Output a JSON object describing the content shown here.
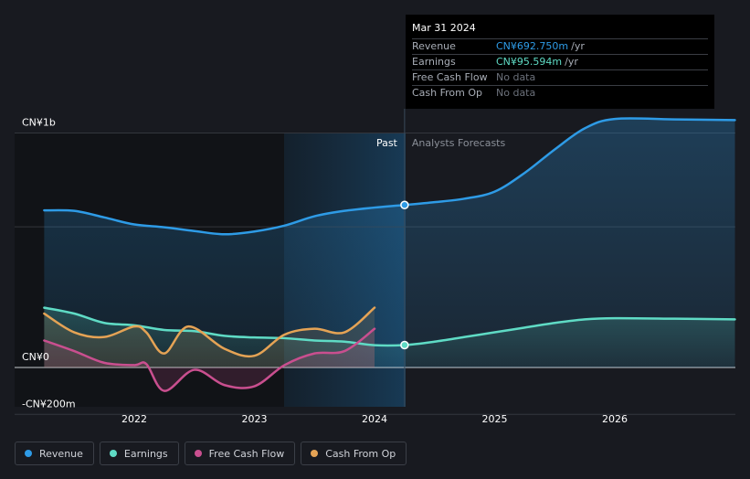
{
  "chart_data": {
    "type": "line",
    "y_unit": "CN¥m",
    "ylim": [
      -200,
      1000
    ],
    "y_axis_labels": [
      {
        "value": 1000,
        "label": "CN¥1b"
      },
      {
        "value": 0,
        "label": "CN¥0"
      },
      {
        "value": -200,
        "label": "-CN¥200m"
      }
    ],
    "x_ticks": [
      {
        "year": 2022,
        "label": "2022"
      },
      {
        "year": 2023,
        "label": "2023"
      },
      {
        "year": 2024,
        "label": "2024"
      },
      {
        "year": 2025,
        "label": "2025"
      },
      {
        "year": 2026,
        "label": "2026"
      }
    ],
    "past_label": "Past",
    "forecast_label": "Analysts Forecasts",
    "divider_date": 2024.25,
    "series": [
      {
        "name": "Revenue",
        "color": "#2e9be6",
        "x": [
          2021.25,
          2021.5,
          2021.75,
          2022.0,
          2022.25,
          2022.5,
          2022.75,
          2023.0,
          2023.25,
          2023.5,
          2023.75,
          2024.0,
          2024.25,
          2024.5,
          2024.75,
          2025.0,
          2025.25,
          2025.5,
          2025.75,
          2026.0,
          2026.5,
          2027.0
        ],
        "values": [
          670,
          668,
          640,
          610,
          598,
          582,
          568,
          580,
          605,
          645,
          668,
          682,
          693,
          705,
          720,
          750,
          830,
          930,
          1020,
          1060,
          1058,
          1055
        ]
      },
      {
        "name": "Earnings",
        "color": "#5fdbc5",
        "x": [
          2021.25,
          2021.5,
          2021.75,
          2022.0,
          2022.25,
          2022.5,
          2022.75,
          2023.0,
          2023.25,
          2023.5,
          2023.75,
          2024.0,
          2024.25,
          2024.5,
          2024.75,
          2025.0,
          2025.25,
          2025.5,
          2025.75,
          2026.0,
          2026.5,
          2027.0
        ],
        "values": [
          255,
          230,
          190,
          180,
          160,
          155,
          135,
          128,
          125,
          115,
          110,
          95,
          95.6,
          110,
          130,
          150,
          170,
          190,
          205,
          210,
          208,
          205
        ]
      },
      {
        "name": "Free Cash Flow",
        "color": "#c94f8f",
        "x": [
          2021.25,
          2021.5,
          2021.75,
          2022.0,
          2022.1,
          2022.25,
          2022.5,
          2022.75,
          2023.0,
          2023.25,
          2023.5,
          2023.75,
          2024.0
        ],
        "values": [
          115,
          70,
          20,
          10,
          15,
          -100,
          -10,
          -75,
          -80,
          10,
          60,
          70,
          165
        ]
      },
      {
        "name": "Cash From Op",
        "color": "#e5a355",
        "x": [
          2021.25,
          2021.5,
          2021.75,
          2022.0,
          2022.1,
          2022.25,
          2022.45,
          2022.75,
          2023.0,
          2023.25,
          2023.5,
          2023.75,
          2024.0
        ],
        "values": [
          230,
          150,
          130,
          175,
          150,
          60,
          175,
          80,
          50,
          140,
          165,
          150,
          255
        ]
      }
    ]
  },
  "tooltip": {
    "date": "Mar 31 2024",
    "rows": [
      {
        "label": "Revenue",
        "value": "CN¥692.750m",
        "unit": "/yr",
        "color": "#2e9be6"
      },
      {
        "label": "Earnings",
        "value": "CN¥95.594m",
        "unit": "/yr",
        "color": "#5fdbc5"
      },
      {
        "label": "Free Cash Flow",
        "value": "No data",
        "unit": "",
        "color": ""
      },
      {
        "label": "Cash From Op",
        "value": "No data",
        "unit": "",
        "color": ""
      }
    ]
  },
  "legend": [
    {
      "label": "Revenue",
      "color": "#2e9be6"
    },
    {
      "label": "Earnings",
      "color": "#5fdbc5"
    },
    {
      "label": "Free Cash Flow",
      "color": "#c94f8f"
    },
    {
      "label": "Cash From Op",
      "color": "#e5a355"
    }
  ]
}
